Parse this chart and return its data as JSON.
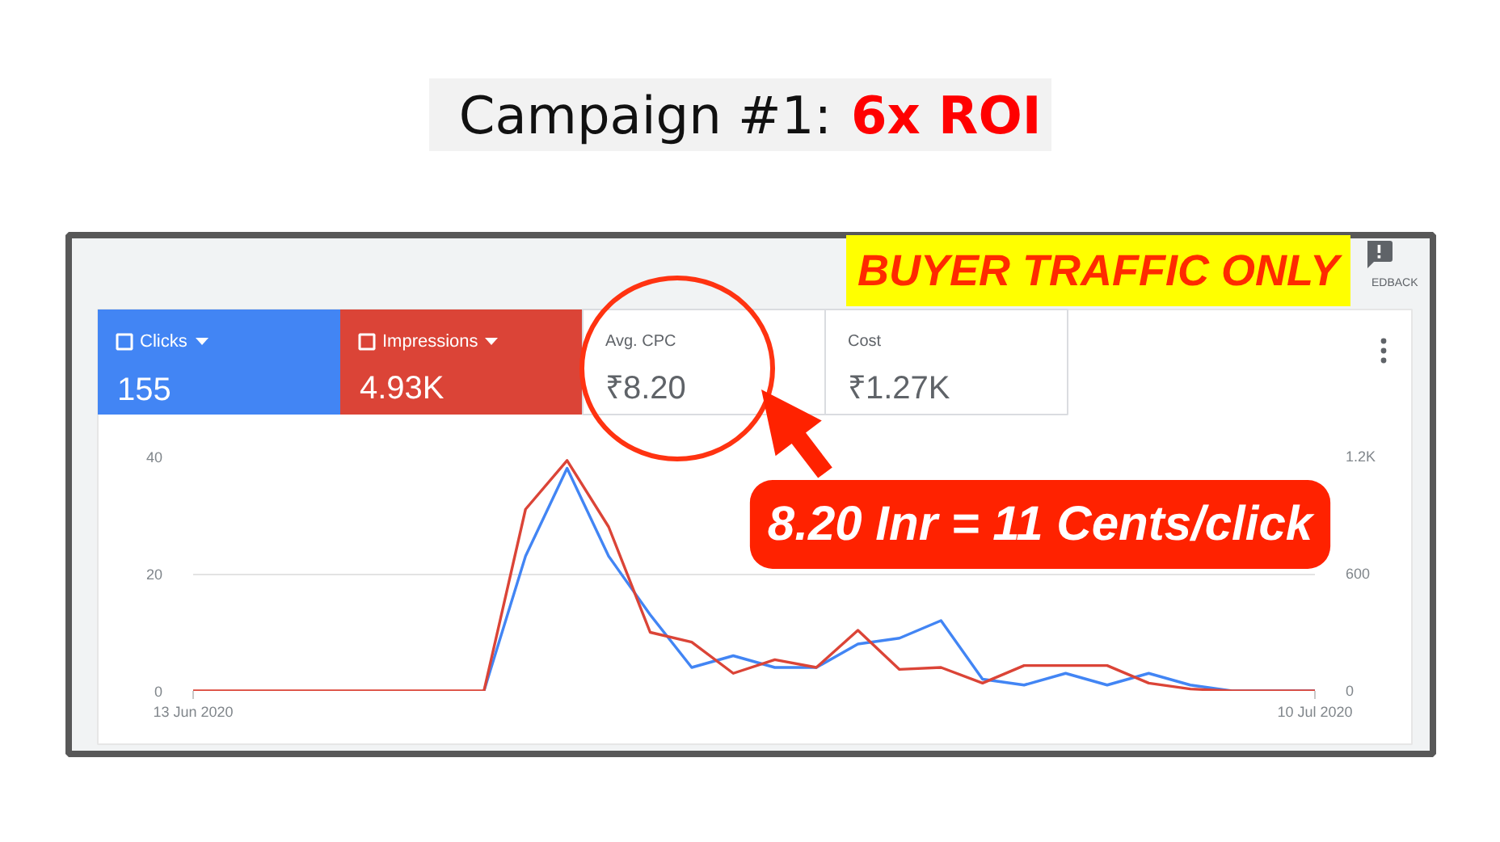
{
  "chart_data": {
    "type": "line",
    "title": "Campaign #1: 6x ROI",
    "x": [
      "2020-06-13",
      "2020-06-14",
      "2020-06-15",
      "2020-06-16",
      "2020-06-17",
      "2020-06-18",
      "2020-06-19",
      "2020-06-20",
      "2020-06-21",
      "2020-06-22",
      "2020-06-23",
      "2020-06-24",
      "2020-06-25",
      "2020-06-26",
      "2020-06-27",
      "2020-06-28",
      "2020-06-29",
      "2020-06-30",
      "2020-07-01",
      "2020-07-02",
      "2020-07-03",
      "2020-07-04",
      "2020-07-05",
      "2020-07-06",
      "2020-07-07",
      "2020-07-08",
      "2020-07-09",
      "2020-07-10"
    ],
    "series": [
      {
        "name": "Clicks",
        "color": "#4285f4",
        "values": [
          null,
          null,
          null,
          null,
          null,
          null,
          null,
          0,
          23,
          38,
          23,
          13,
          4,
          6,
          4,
          4,
          8,
          9,
          12,
          2,
          1,
          3,
          1,
          3,
          1,
          0,
          0,
          0
        ]
      },
      {
        "name": "Impressions",
        "color": "#db4437",
        "axis": "y2",
        "values": [
          0,
          0,
          0,
          0,
          0,
          0,
          0,
          0,
          930,
          1180,
          840,
          300,
          250,
          90,
          160,
          120,
          310,
          110,
          120,
          40,
          130,
          130,
          130,
          40,
          10,
          0,
          0,
          0
        ]
      }
    ],
    "xlim": [
      "2020-06-13",
      "2020-07-10"
    ],
    "xticks": [
      {
        "value": "2020-06-13",
        "label": "13 Jun 2020"
      },
      {
        "value": "2020-07-10",
        "label": "10 Jul 2020"
      }
    ],
    "ylim": [
      0,
      40
    ],
    "yticks": [
      0,
      20,
      40
    ],
    "y2lim": [
      0,
      1200
    ],
    "y2ticks": [
      0,
      600,
      {
        "value": 1200,
        "label": "1.2K"
      }
    ],
    "grid": "y",
    "legend": "top left",
    "annotations": [
      "155",
      "4.93K",
      "Avg. CPC",
      "₹8.20",
      "Cost",
      "₹1.27K",
      "BUYER TRAFFIC ONLY",
      "EDBACK",
      "8.20 Inr = 11 Cents/click"
    ]
  }
}
